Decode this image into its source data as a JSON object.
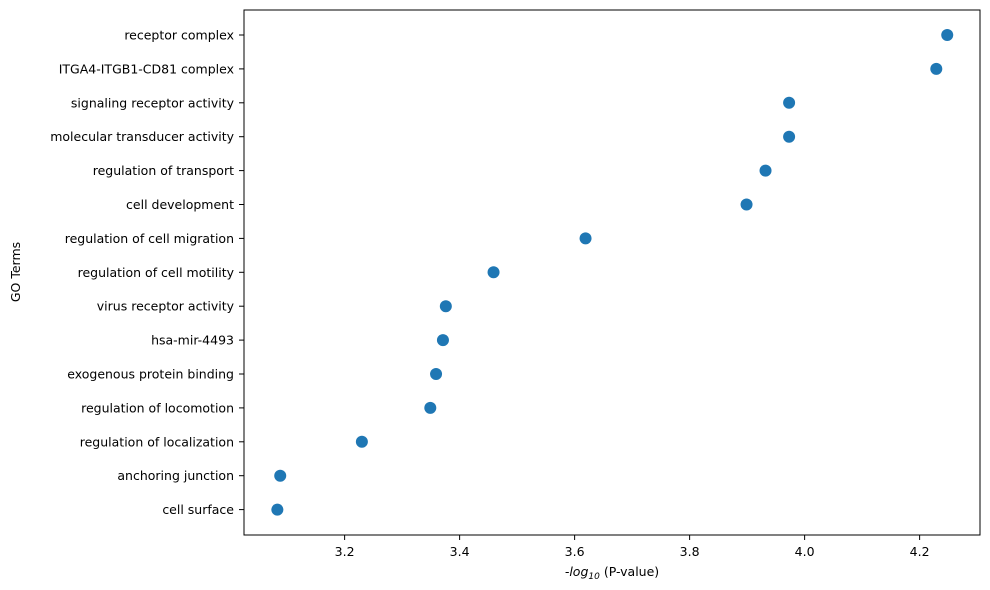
{
  "chart_data": {
    "type": "scatter",
    "title": "",
    "xlabel_prefix": "-log",
    "xlabel_sub": "10",
    "xlabel_suffix": " (P-value)",
    "ylabel": "GO Terms",
    "xlim": [
      3.025,
      4.305
    ],
    "xticks": [
      3.2,
      3.4,
      3.6,
      3.8,
      4.0,
      4.2
    ],
    "xtick_labels": [
      "3.2",
      "3.4",
      "3.6",
      "3.8",
      "4.0",
      "4.2"
    ],
    "grid": false,
    "legend": "none",
    "marker_color": "#1f77b4",
    "categories": [
      "receptor complex",
      "ITGA4-ITGB1-CD81 complex",
      "signaling receptor activity",
      "molecular transducer activity",
      "regulation of transport",
      "cell development",
      "regulation of cell migration",
      "regulation of cell motility",
      "virus receptor activity",
      "hsa-mir-4493",
      "exogenous protein binding",
      "regulation of locomotion",
      "regulation of localization",
      "anchoring junction",
      "cell surface"
    ],
    "values": [
      4.248,
      4.229,
      3.973,
      3.973,
      3.932,
      3.899,
      3.619,
      3.459,
      3.376,
      3.371,
      3.359,
      3.349,
      3.23,
      3.088,
      3.083
    ]
  }
}
